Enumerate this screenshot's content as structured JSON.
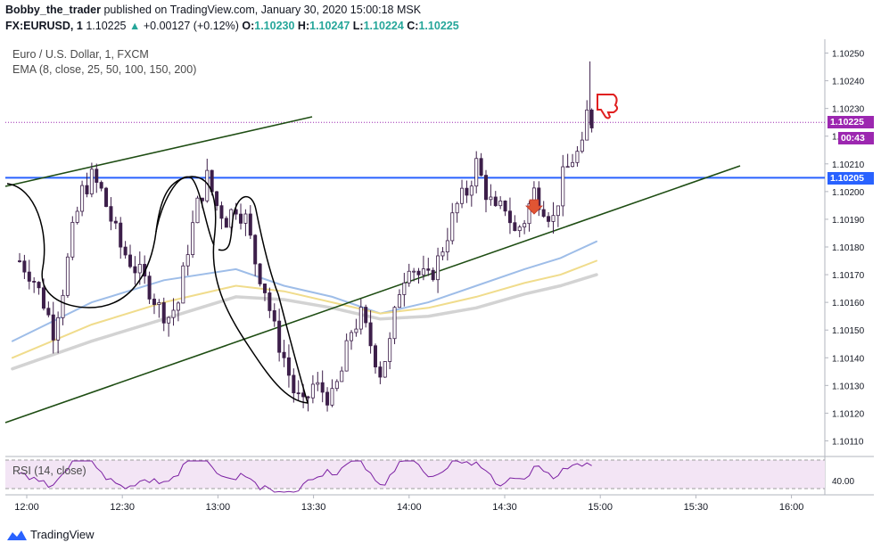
{
  "header": {
    "user": "Bobby_the_trader",
    "published": "published on TradingView.com, January 30, 2020 15:00:18 MSK",
    "symbol": "FX:EURUSD, 1",
    "last": "1.10225",
    "change_arrow": "▲",
    "change": "+0.00127 (+0.12%)",
    "o_label": "O:",
    "o_val": "1.10230",
    "h_label": "H:",
    "h_val": "1.10247",
    "l_label": "L:",
    "l_val": "1.10224",
    "c_label": "C:",
    "c_val": "1.10225"
  },
  "legend": {
    "instrument": "Euro / U.S. Dollar, 1, FXCM",
    "ema": "EMA (8, close, 25, 50, 100, 150, 200)",
    "rsi": "RSI (14, close)"
  },
  "price_tags": {
    "last": "1.10225",
    "countdown": "00:43",
    "level": "1.10205"
  },
  "footer": {
    "brand": "TradingView"
  },
  "colors": {
    "bull": "#ffffff",
    "bear": "#3d1f4a",
    "trendline": "#1e4d13",
    "support": "#2962ff",
    "last_price": "#9c27b0",
    "ema_blue": "#9ebde8",
    "ema_yellow": "#f0dc8c",
    "ema_gray": "#d3d3d3",
    "rsi": "#7b1fa2",
    "rsi_band": "#f3e5f5"
  },
  "chart_data": {
    "type": "candlestick",
    "y_ticks": [
      "1.10250",
      "1.10240",
      "1.10230",
      "1.10220",
      "1.10210",
      "1.10200",
      "1.10190",
      "1.10180",
      "1.10170",
      "1.10160",
      "1.10150",
      "1.10140",
      "1.10130",
      "1.10120",
      "1.10110"
    ],
    "x_ticks": [
      "12:00",
      "12:30",
      "13:00",
      "13:30",
      "14:00",
      "14:30",
      "15:00",
      "15:30",
      "16:00"
    ],
    "ylim": [
      1.10105,
      1.10255
    ],
    "rsi_tick": "40.00",
    "support_level": 1.10205,
    "last_price": 1.10225,
    "close_path": [
      [
        0,
        1.10175
      ],
      [
        5,
        1.1017
      ],
      [
        10,
        1.1016
      ],
      [
        14,
        1.1015
      ],
      [
        18,
        1.10165
      ],
      [
        22,
        1.10185
      ],
      [
        26,
        1.102
      ],
      [
        30,
        1.10205
      ],
      [
        34,
        1.102
      ],
      [
        38,
        1.1019
      ],
      [
        42,
        1.1018
      ],
      [
        46,
        1.10175
      ],
      [
        50,
        1.1017
      ],
      [
        54,
        1.10165
      ],
      [
        58,
        1.10158
      ],
      [
        62,
        1.10155
      ],
      [
        66,
        1.1016
      ],
      [
        70,
        1.1018
      ],
      [
        74,
        1.10195
      ],
      [
        78,
        1.10205
      ],
      [
        82,
        1.10195
      ],
      [
        86,
        1.1019
      ],
      [
        90,
        1.10195
      ],
      [
        94,
        1.1019
      ],
      [
        98,
        1.10175
      ],
      [
        102,
        1.10165
      ],
      [
        106,
        1.1015
      ],
      [
        110,
        1.1014
      ],
      [
        114,
        1.10128
      ],
      [
        118,
        1.10122
      ],
      [
        122,
        1.1013
      ],
      [
        126,
        1.10128
      ],
      [
        130,
        1.10125
      ],
      [
        134,
        1.10135
      ],
      [
        138,
        1.1015
      ],
      [
        142,
        1.10155
      ],
      [
        146,
        1.10145
      ],
      [
        150,
        1.10135
      ],
      [
        154,
        1.10145
      ],
      [
        158,
        1.10165
      ],
      [
        162,
        1.10175
      ],
      [
        166,
        1.1017
      ],
      [
        170,
        1.10168
      ],
      [
        174,
        1.10175
      ],
      [
        178,
        1.10185
      ],
      [
        182,
        1.10195
      ],
      [
        186,
        1.102
      ],
      [
        190,
        1.1021
      ],
      [
        194,
        1.102
      ],
      [
        198,
        1.10192
      ],
      [
        202,
        1.10195
      ],
      [
        206,
        1.10185
      ],
      [
        210,
        1.1019
      ],
      [
        214,
        1.102
      ],
      [
        218,
        1.10195
      ],
      [
        222,
        1.1019
      ],
      [
        226,
        1.10205
      ],
      [
        230,
        1.10212
      ],
      [
        234,
        1.10215
      ],
      [
        236,
        1.10228
      ],
      [
        238,
        1.10225
      ]
    ]
  }
}
